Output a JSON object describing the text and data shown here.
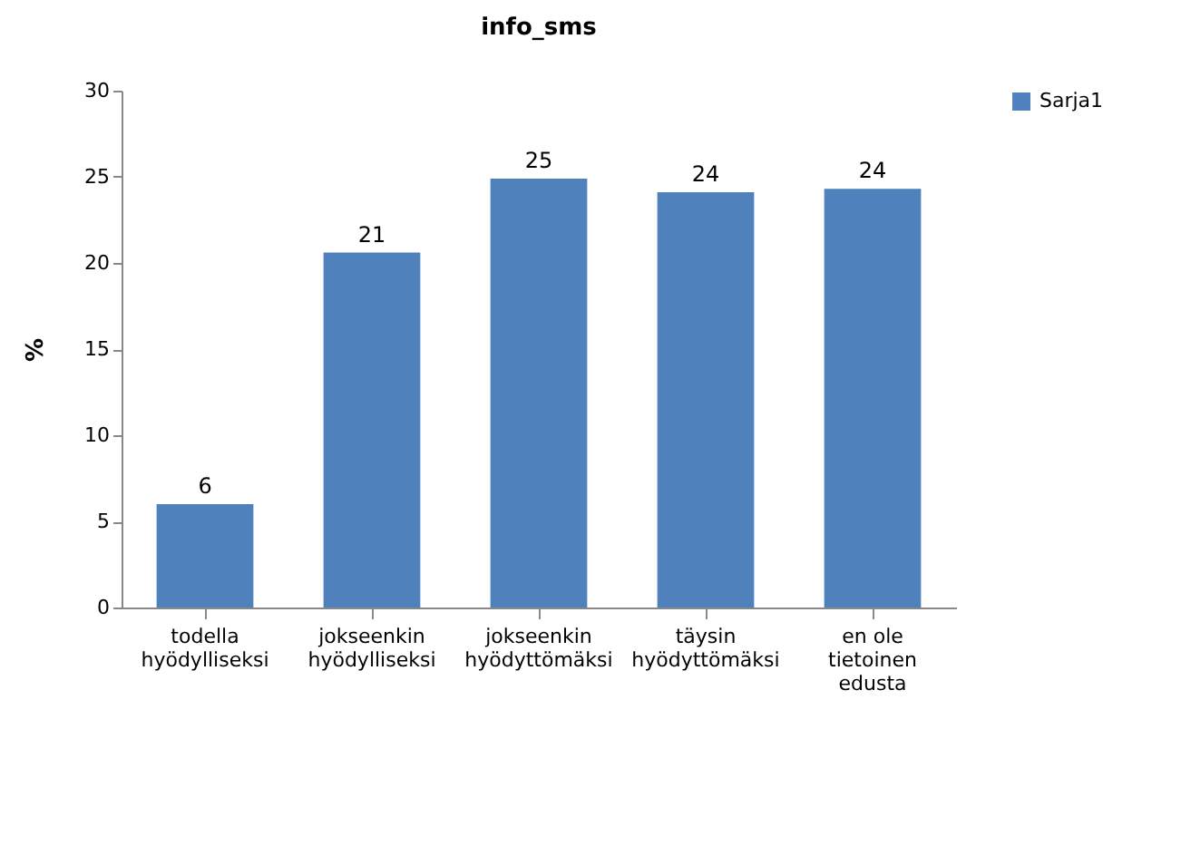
{
  "chart_data": {
    "type": "bar",
    "title": "info_sms",
    "ylabel": "%",
    "categories": [
      "todella hyödylliseksi",
      "jokseenkin hyödylliseksi",
      "jokseenkin hyödyttömäksi",
      "täysin hyödyttömäksi",
      "en ole tietoinen edusta"
    ],
    "series": [
      {
        "name": "Sarja1",
        "color": "#4f81bd",
        "values": [
          6.0,
          20.6,
          24.9,
          24.1,
          24.3
        ],
        "value_labels": [
          "6",
          "21",
          "25",
          "24",
          "24"
        ]
      }
    ],
    "ylim": [
      0,
      30
    ],
    "yticks": [
      0,
      5,
      10,
      15,
      20,
      25,
      30
    ],
    "grid": false,
    "legend": "right"
  }
}
